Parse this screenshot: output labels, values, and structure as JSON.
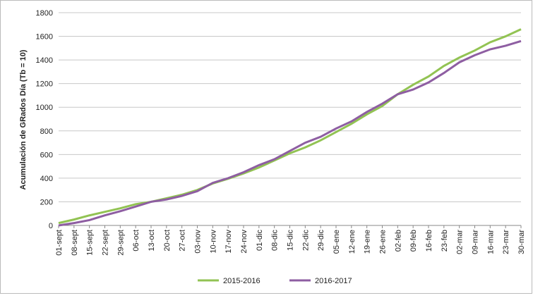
{
  "chart_data": {
    "type": "line",
    "y_label": "Acumulación de GRados Día (Tb = 10)",
    "categories": [
      "01-sept",
      "08-sept",
      "15-sept",
      "22-sept",
      "29-sept",
      "06-oct",
      "13-oct",
      "20-oct",
      "27-oct",
      "03-nov",
      "10-nov",
      "17-nov",
      "24-nov",
      "01-dic",
      "08-dic",
      "15-dic",
      "22-dic",
      "29-dic",
      "05-ene",
      "12-ene",
      "19-ene",
      "26-ene",
      "02-feb",
      "09-feb",
      "16-feb",
      "23-feb",
      "02-mar",
      "09-mar",
      "16-mar",
      "23-mar",
      "30-mar"
    ],
    "series": [
      {
        "name": "2015-2016",
        "color": "#92c353",
        "values": [
          20,
          50,
          85,
          115,
          145,
          180,
          200,
          230,
          260,
          300,
          355,
          395,
          440,
          490,
          550,
          610,
          660,
          720,
          790,
          860,
          940,
          1010,
          1110,
          1190,
          1260,
          1350,
          1420,
          1480,
          1550,
          1600,
          1660
        ]
      },
      {
        "name": "2016-2017",
        "color": "#8e5ea2",
        "values": [
          0,
          20,
          45,
          85,
          120,
          160,
          200,
          220,
          250,
          290,
          360,
          400,
          450,
          510,
          560,
          630,
          700,
          750,
          820,
          880,
          960,
          1030,
          1110,
          1150,
          1210,
          1290,
          1380,
          1440,
          1490,
          1520,
          1560
        ]
      }
    ],
    "ylim": [
      0,
      1800
    ],
    "yticks": [
      0,
      200,
      400,
      600,
      800,
      1000,
      1200,
      1400,
      1600,
      1800
    ],
    "grid": true,
    "legend": "bottom"
  }
}
